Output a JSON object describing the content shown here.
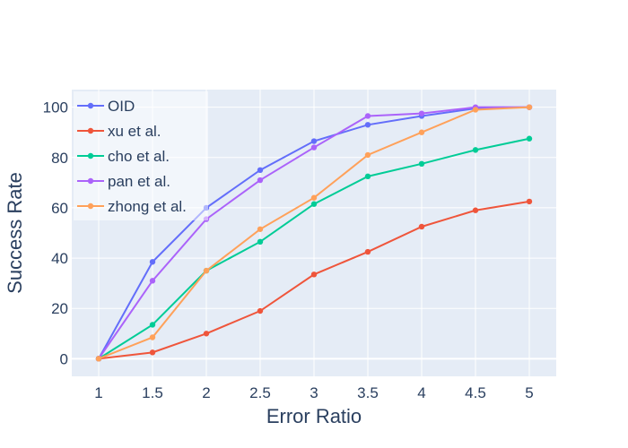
{
  "chart_data": {
    "type": "line",
    "xlabel": "Error Ratio",
    "ylabel": "Success Rate",
    "x": [
      1,
      1.5,
      2,
      2.5,
      3,
      3.5,
      4,
      4.5,
      5
    ],
    "x_tick_labels": [
      "1",
      "1.5",
      "2",
      "2.5",
      "3",
      "3.5",
      "4",
      "4.5",
      "5"
    ],
    "y_ticks": [
      0,
      20,
      40,
      60,
      80,
      100
    ],
    "xlim": [
      0.75,
      5.25
    ],
    "ylim": [
      -7,
      107
    ],
    "grid": true,
    "legend_position": "top-left",
    "series": [
      {
        "name": "OID",
        "color": "#636efa",
        "values": [
          0,
          38.5,
          60,
          75,
          86.5,
          93,
          96.5,
          99.5,
          100
        ]
      },
      {
        "name": "xu et al.",
        "color": "#ef553b",
        "values": [
          0,
          2.5,
          10,
          19,
          33.5,
          42.5,
          52.5,
          59,
          62.5
        ]
      },
      {
        "name": "cho et al.",
        "color": "#00cc96",
        "values": [
          0,
          13.5,
          35,
          46.5,
          61.5,
          72.5,
          77.5,
          83,
          87.5
        ]
      },
      {
        "name": "pan et al.",
        "color": "#ab63fa",
        "values": [
          0,
          31,
          55.5,
          71,
          84,
          96.5,
          97.5,
          100,
          100
        ]
      },
      {
        "name": "zhong et al.",
        "color": "#ffa15a",
        "values": [
          0,
          8.5,
          35,
          51.5,
          64,
          81,
          90,
          99,
          100
        ]
      }
    ]
  }
}
